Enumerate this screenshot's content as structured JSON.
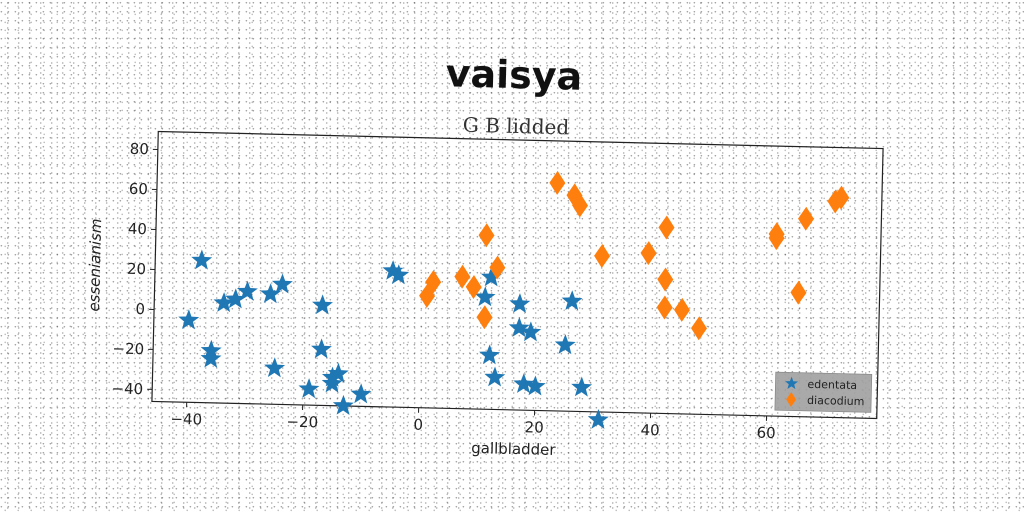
{
  "chart_data": {
    "type": "scatter",
    "title": "vaisya",
    "subtitle": "G B lidded",
    "xlabel": "gallbladder",
    "ylabel": "essenianism",
    "xlim": [
      -46,
      79
    ],
    "ylim": [
      -46,
      89
    ],
    "xticks": [
      -40,
      -20,
      0,
      20,
      40,
      60
    ],
    "yticks": [
      -40,
      -20,
      0,
      20,
      40,
      60,
      80
    ],
    "grid": false,
    "legend_position": "bottom-right",
    "series": [
      {
        "name": "edentata",
        "marker": "star",
        "color": "#1f77b4",
        "points": [
          [
            -38,
            25
          ],
          [
            -40,
            -5
          ],
          [
            -36,
            -20
          ],
          [
            -36,
            -24
          ],
          [
            -34,
            4
          ],
          [
            -32,
            6
          ],
          [
            -30,
            10
          ],
          [
            -26,
            9
          ],
          [
            -24,
            14
          ],
          [
            -25,
            -28
          ],
          [
            -19,
            -38
          ],
          [
            -17,
            4
          ],
          [
            -17,
            -18
          ],
          [
            -15,
            -32
          ],
          [
            -14,
            -30
          ],
          [
            -15,
            -35
          ],
          [
            -13,
            -46
          ],
          [
            -10,
            -40
          ],
          [
            -5,
            22
          ],
          [
            -4,
            20
          ],
          [
            11,
            10
          ],
          [
            12,
            20
          ],
          [
            12,
            -19
          ],
          [
            13,
            -30
          ],
          [
            17,
            7
          ],
          [
            17,
            -5
          ],
          [
            19,
            -7
          ],
          [
            18,
            -33
          ],
          [
            20,
            -34
          ],
          [
            25,
            -13
          ],
          [
            26,
            9
          ],
          [
            28,
            -34
          ],
          [
            31,
            -50
          ]
        ]
      },
      {
        "name": "diacodium",
        "marker": "diamond",
        "color": "#ff7f0e",
        "points": [
          [
            1,
            10
          ],
          [
            2,
            17
          ],
          [
            7,
            20
          ],
          [
            9,
            15
          ],
          [
            11,
            41
          ],
          [
            11,
            0
          ],
          [
            13,
            25
          ],
          [
            23,
            68
          ],
          [
            26,
            62
          ],
          [
            27,
            57
          ],
          [
            31,
            32
          ],
          [
            39,
            34
          ],
          [
            42,
            47
          ],
          [
            42,
            21
          ],
          [
            42,
            7
          ],
          [
            45,
            6
          ],
          [
            48,
            -3
          ],
          [
            61,
            45
          ],
          [
            61,
            43
          ],
          [
            66,
            53
          ],
          [
            65,
            16
          ],
          [
            71,
            62
          ],
          [
            72,
            64
          ]
        ]
      }
    ]
  }
}
